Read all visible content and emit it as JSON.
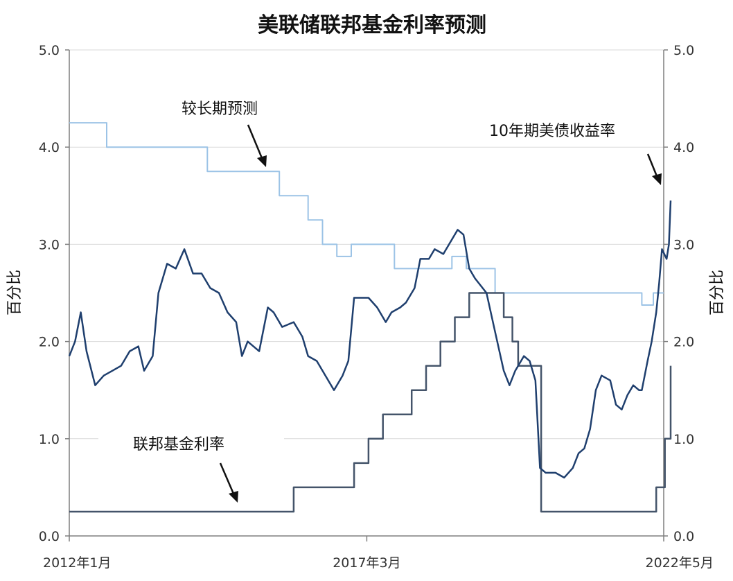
{
  "chart_data": {
    "type": "line",
    "title": "美联储联邦基金利率预测",
    "ylabel_left": "百分比",
    "ylabel_right": "百分比",
    "ylim": [
      0,
      5
    ],
    "yticks": [
      "0.0",
      "1.0",
      "2.0",
      "3.0",
      "4.0",
      "5.0"
    ],
    "xlim": [
      2012.0,
      2022.33
    ],
    "xticks": [
      {
        "label": "2012年1月",
        "x": 2012.0
      },
      {
        "label": "2017年3月",
        "x": 2017.17
      },
      {
        "label": "2022年5月",
        "x": 2022.33
      }
    ],
    "grid": true,
    "colors": {
      "longer_run": "#9cc3e6",
      "fed_funds": "#44546a",
      "treasury": "#1f3f6e",
      "grid": "#d9d9d9",
      "axis": "#7f7f7f"
    },
    "annotations": [
      {
        "text": "较长期预测",
        "points_to": "longer_run"
      },
      {
        "text": "10年期美债收益率",
        "points_to": "treasury"
      },
      {
        "text": "联邦基金利率",
        "points_to": "fed_funds"
      }
    ],
    "series": [
      {
        "name": "较长期预测",
        "style": "step",
        "points": [
          [
            2012.0,
            4.25
          ],
          [
            2012.65,
            4.25
          ],
          [
            2012.65,
            4.0
          ],
          [
            2014.4,
            4.0
          ],
          [
            2014.4,
            3.75
          ],
          [
            2015.65,
            3.75
          ],
          [
            2015.65,
            3.5
          ],
          [
            2016.15,
            3.5
          ],
          [
            2016.15,
            3.25
          ],
          [
            2016.4,
            3.25
          ],
          [
            2016.4,
            3.0
          ],
          [
            2016.65,
            3.0
          ],
          [
            2016.65,
            2.875
          ],
          [
            2016.9,
            2.875
          ],
          [
            2016.9,
            3.0
          ],
          [
            2017.65,
            3.0
          ],
          [
            2017.65,
            2.75
          ],
          [
            2018.65,
            2.75
          ],
          [
            2018.65,
            2.875
          ],
          [
            2018.9,
            2.875
          ],
          [
            2018.9,
            2.75
          ],
          [
            2019.4,
            2.75
          ],
          [
            2019.4,
            2.5
          ],
          [
            2021.95,
            2.5
          ],
          [
            2021.95,
            2.375
          ],
          [
            2022.15,
            2.375
          ],
          [
            2022.15,
            2.5
          ],
          [
            2022.33,
            2.5
          ]
        ]
      },
      {
        "name": "联邦基金利率",
        "style": "step",
        "points": [
          [
            2012.0,
            0.25
          ],
          [
            2015.9,
            0.25
          ],
          [
            2015.9,
            0.5
          ],
          [
            2016.95,
            0.5
          ],
          [
            2016.95,
            0.75
          ],
          [
            2017.2,
            0.75
          ],
          [
            2017.2,
            1.0
          ],
          [
            2017.45,
            1.0
          ],
          [
            2017.45,
            1.25
          ],
          [
            2017.95,
            1.25
          ],
          [
            2017.95,
            1.5
          ],
          [
            2018.2,
            1.5
          ],
          [
            2018.2,
            1.75
          ],
          [
            2018.45,
            1.75
          ],
          [
            2018.45,
            2.0
          ],
          [
            2018.7,
            2.0
          ],
          [
            2018.7,
            2.25
          ],
          [
            2018.95,
            2.25
          ],
          [
            2018.95,
            2.5
          ],
          [
            2019.55,
            2.5
          ],
          [
            2019.55,
            2.25
          ],
          [
            2019.7,
            2.25
          ],
          [
            2019.7,
            2.0
          ],
          [
            2019.8,
            2.0
          ],
          [
            2019.8,
            1.75
          ],
          [
            2020.2,
            1.75
          ],
          [
            2020.2,
            0.25
          ],
          [
            2022.2,
            0.25
          ],
          [
            2022.2,
            0.5
          ],
          [
            2022.35,
            0.5
          ],
          [
            2022.35,
            1.0
          ],
          [
            2022.45,
            1.0
          ],
          [
            2022.45,
            1.75
          ]
        ]
      },
      {
        "name": "10年期美债收益率",
        "style": "line",
        "points": [
          [
            2012.0,
            1.85
          ],
          [
            2012.1,
            2.0
          ],
          [
            2012.2,
            2.3
          ],
          [
            2012.3,
            1.9
          ],
          [
            2012.45,
            1.55
          ],
          [
            2012.6,
            1.65
          ],
          [
            2012.75,
            1.7
          ],
          [
            2012.9,
            1.75
          ],
          [
            2013.05,
            1.9
          ],
          [
            2013.2,
            1.95
          ],
          [
            2013.3,
            1.7
          ],
          [
            2013.45,
            1.85
          ],
          [
            2013.55,
            2.5
          ],
          [
            2013.7,
            2.8
          ],
          [
            2013.85,
            2.75
          ],
          [
            2014.0,
            2.95
          ],
          [
            2014.15,
            2.7
          ],
          [
            2014.3,
            2.7
          ],
          [
            2014.45,
            2.55
          ],
          [
            2014.6,
            2.5
          ],
          [
            2014.75,
            2.3
          ],
          [
            2014.9,
            2.2
          ],
          [
            2015.0,
            1.85
          ],
          [
            2015.1,
            2.0
          ],
          [
            2015.3,
            1.9
          ],
          [
            2015.45,
            2.35
          ],
          [
            2015.55,
            2.3
          ],
          [
            2015.7,
            2.15
          ],
          [
            2015.9,
            2.2
          ],
          [
            2016.05,
            2.05
          ],
          [
            2016.15,
            1.85
          ],
          [
            2016.3,
            1.8
          ],
          [
            2016.5,
            1.6
          ],
          [
            2016.6,
            1.5
          ],
          [
            2016.75,
            1.65
          ],
          [
            2016.85,
            1.8
          ],
          [
            2016.95,
            2.45
          ],
          [
            2017.05,
            2.45
          ],
          [
            2017.2,
            2.45
          ],
          [
            2017.35,
            2.35
          ],
          [
            2017.5,
            2.2
          ],
          [
            2017.6,
            2.3
          ],
          [
            2017.75,
            2.35
          ],
          [
            2017.85,
            2.4
          ],
          [
            2018.0,
            2.55
          ],
          [
            2018.1,
            2.85
          ],
          [
            2018.25,
            2.85
          ],
          [
            2018.35,
            2.95
          ],
          [
            2018.5,
            2.9
          ],
          [
            2018.65,
            3.05
          ],
          [
            2018.75,
            3.15
          ],
          [
            2018.85,
            3.1
          ],
          [
            2018.95,
            2.75
          ],
          [
            2019.05,
            2.65
          ],
          [
            2019.25,
            2.5
          ],
          [
            2019.4,
            2.1
          ],
          [
            2019.55,
            1.7
          ],
          [
            2019.65,
            1.55
          ],
          [
            2019.75,
            1.7
          ],
          [
            2019.9,
            1.85
          ],
          [
            2020.0,
            1.8
          ],
          [
            2020.1,
            1.6
          ],
          [
            2020.18,
            0.7
          ],
          [
            2020.28,
            0.65
          ],
          [
            2020.45,
            0.65
          ],
          [
            2020.6,
            0.6
          ],
          [
            2020.75,
            0.7
          ],
          [
            2020.85,
            0.85
          ],
          [
            2020.95,
            0.9
          ],
          [
            2021.05,
            1.1
          ],
          [
            2021.15,
            1.5
          ],
          [
            2021.25,
            1.65
          ],
          [
            2021.4,
            1.6
          ],
          [
            2021.5,
            1.35
          ],
          [
            2021.6,
            1.3
          ],
          [
            2021.7,
            1.45
          ],
          [
            2021.8,
            1.55
          ],
          [
            2021.9,
            1.5
          ],
          [
            2021.95,
            1.5
          ],
          [
            2022.05,
            1.8
          ],
          [
            2022.12,
            2.0
          ],
          [
            2022.2,
            2.3
          ],
          [
            2022.25,
            2.6
          ],
          [
            2022.3,
            2.95
          ],
          [
            2022.38,
            2.85
          ],
          [
            2022.42,
            3.0
          ],
          [
            2022.45,
            3.45
          ]
        ]
      }
    ]
  }
}
